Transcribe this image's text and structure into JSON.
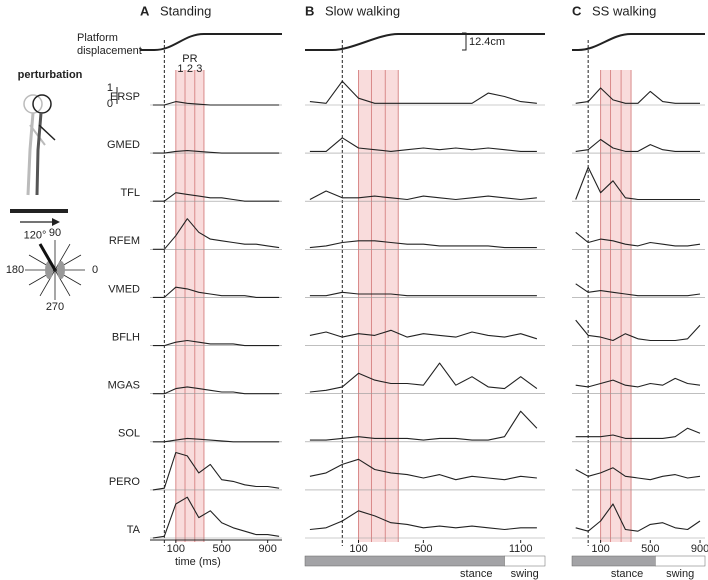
{
  "figure": {
    "platform_label": [
      "Platform",
      "displacement"
    ],
    "scale_label": "12.4cm",
    "perturbation_label": "perturbation",
    "directions": [
      90,
      180,
      0,
      270
    ],
    "highlight_direction": {
      "value": 120,
      "label": "120°"
    },
    "scale_bar": [
      1,
      0
    ],
    "pr_label": "PR",
    "pr_numbers": [
      1,
      2,
      3
    ],
    "pr_bounds": [
      100,
      180,
      265,
      345
    ],
    "onset_ms": 0,
    "time_label": "time (ms)",
    "stance_label": "stance",
    "swing_label": "swing",
    "muscles": [
      "ERSP",
      "GMED",
      "TFL",
      "RFEM",
      "VMED",
      "BFLH",
      "MGAS",
      "SOL",
      "PERO",
      "TA"
    ],
    "panels": [
      {
        "letter": "A",
        "title": "Standing",
        "xlim": [
          -125,
          1025
        ],
        "xticks": [
          100,
          500,
          900
        ],
        "x": [
          -100,
          0,
          100,
          200,
          300,
          400,
          500,
          600,
          700,
          800,
          900,
          1000
        ],
        "traces": [
          [
            0,
            0,
            0.2,
            0.1,
            0.05,
            0,
            0,
            0,
            0,
            0,
            0,
            0
          ],
          [
            0,
            0,
            0.1,
            0.15,
            0.1,
            0.05,
            0,
            0,
            0,
            0,
            0,
            0
          ],
          [
            0,
            0,
            0.5,
            0.4,
            0.3,
            0.2,
            0.2,
            0.1,
            0,
            0,
            0,
            0
          ],
          [
            0,
            0,
            0.8,
            1.8,
            1.0,
            0.6,
            0.5,
            0.4,
            0.3,
            0.3,
            0.2,
            0.1
          ],
          [
            0,
            0,
            0.6,
            0.5,
            0.3,
            0.2,
            0.1,
            0.1,
            0.1,
            0,
            0,
            0
          ],
          [
            0,
            0,
            0.2,
            0.3,
            0.2,
            0.1,
            0.1,
            0.1,
            0,
            0,
            0,
            0
          ],
          [
            0,
            0,
            0.3,
            0.4,
            0.3,
            0.2,
            0.1,
            0.1,
            0,
            0,
            0,
            0
          ],
          [
            0,
            0,
            0.1,
            0.2,
            0.15,
            0.1,
            0.05,
            0,
            0,
            0,
            0,
            0
          ],
          [
            0,
            0.1,
            2.2,
            2.0,
            1.0,
            1.5,
            0.6,
            0.5,
            0.3,
            0.2,
            0.2,
            0.1
          ],
          [
            0,
            0.1,
            2.0,
            2.4,
            1.2,
            1.6,
            0.9,
            0.6,
            0.4,
            0.2,
            0.2,
            0.1
          ]
        ]
      },
      {
        "letter": "B",
        "title": "Slow walking",
        "xlim": [
          -230,
          1250
        ],
        "xticks": [
          100,
          500,
          1100
        ],
        "stance_end": 1000,
        "x": [
          -200,
          -100,
          0,
          100,
          200,
          300,
          400,
          500,
          600,
          700,
          800,
          900,
          1000,
          1100,
          1200
        ],
        "traces": [
          [
            0.2,
            0.1,
            1.4,
            0.4,
            0.1,
            0.1,
            0.1,
            0.1,
            0.1,
            0.1,
            0.1,
            0.7,
            0.5,
            0.2,
            0.1
          ],
          [
            0.1,
            0.1,
            0.9,
            0.3,
            0.2,
            0.1,
            0.2,
            0.3,
            0.2,
            0.3,
            0.2,
            0.3,
            0.2,
            0.1,
            0.1
          ],
          [
            0.1,
            0.6,
            0.2,
            0.2,
            0.3,
            0.2,
            0.1,
            0.3,
            0.2,
            0.1,
            0.2,
            0.3,
            0.2,
            0.1,
            0.2
          ],
          [
            0.1,
            0.2,
            0.4,
            0.5,
            0.5,
            0.4,
            0.3,
            0.3,
            0.2,
            0.2,
            0.2,
            0.2,
            0.1,
            0.1,
            0.1
          ],
          [
            0.1,
            0.1,
            0.3,
            0.2,
            0.2,
            0.2,
            0.1,
            0.1,
            0.1,
            0.1,
            0.1,
            0.1,
            0.1,
            0.1,
            0.1
          ],
          [
            0.6,
            0.8,
            0.5,
            0.7,
            0.6,
            0.9,
            0.5,
            0.7,
            0.6,
            0.5,
            0.8,
            0.6,
            0.5,
            0.7,
            0.4
          ],
          [
            0.1,
            0.2,
            0.4,
            1.2,
            0.8,
            0.6,
            0.6,
            0.5,
            1.8,
            0.5,
            1.0,
            0.4,
            0.3,
            1.0,
            0.3
          ],
          [
            0.1,
            0.1,
            0.2,
            0.3,
            0.2,
            0.2,
            0.2,
            0.1,
            0.2,
            0.2,
            0.1,
            0.1,
            0.3,
            1.8,
            0.8
          ],
          [
            0.8,
            1.0,
            1.5,
            1.8,
            1.2,
            1.0,
            0.9,
            0.7,
            0.9,
            0.6,
            0.8,
            0.7,
            0.6,
            0.8,
            0.7
          ],
          [
            0.5,
            0.6,
            1.0,
            1.6,
            1.3,
            0.9,
            0.8,
            0.6,
            0.7,
            0.6,
            0.7,
            0.6,
            0.5,
            0.6,
            0.6
          ]
        ]
      },
      {
        "letter": "C",
        "title": "SS walking",
        "xlim": [
          -130,
          940
        ],
        "xticks": [
          100,
          500,
          900
        ],
        "stance_end": 540,
        "x": [
          -100,
          0,
          100,
          200,
          300,
          400,
          500,
          600,
          700,
          800,
          900
        ],
        "traces": [
          [
            0.1,
            0.2,
            1.0,
            0.3,
            0.1,
            0.1,
            0.8,
            0.2,
            0.1,
            0.1,
            0.1
          ],
          [
            0.1,
            0.2,
            0.8,
            0.3,
            0.1,
            0.1,
            0.5,
            0.2,
            0.1,
            0.1,
            0.1
          ],
          [
            0.1,
            2.0,
            0.5,
            1.2,
            0.2,
            0.1,
            0.1,
            0.1,
            0.1,
            0.1,
            0.1
          ],
          [
            1.0,
            0.4,
            0.6,
            0.5,
            0.3,
            0.2,
            0.4,
            0.3,
            0.2,
            0.2,
            0.3
          ],
          [
            0.8,
            0.3,
            0.4,
            0.3,
            0.2,
            0.1,
            0.1,
            0.1,
            0.1,
            0.1,
            0.2
          ],
          [
            1.5,
            0.6,
            0.5,
            0.3,
            0.7,
            0.4,
            0.3,
            0.3,
            0.3,
            0.4,
            1.2
          ],
          [
            0.5,
            0.4,
            0.6,
            0.8,
            0.5,
            0.4,
            0.6,
            0.5,
            0.9,
            0.6,
            0.5
          ],
          [
            0.3,
            0.3,
            0.3,
            0.4,
            0.2,
            0.2,
            0.2,
            0.2,
            0.3,
            0.8,
            0.5
          ],
          [
            1.2,
            0.8,
            1.0,
            1.3,
            0.8,
            0.7,
            0.6,
            0.8,
            0.9,
            0.7,
            0.8
          ],
          [
            0.6,
            0.4,
            1.0,
            2.0,
            0.5,
            0.4,
            0.8,
            0.9,
            0.6,
            0.5,
            1.0
          ]
        ]
      }
    ]
  }
}
